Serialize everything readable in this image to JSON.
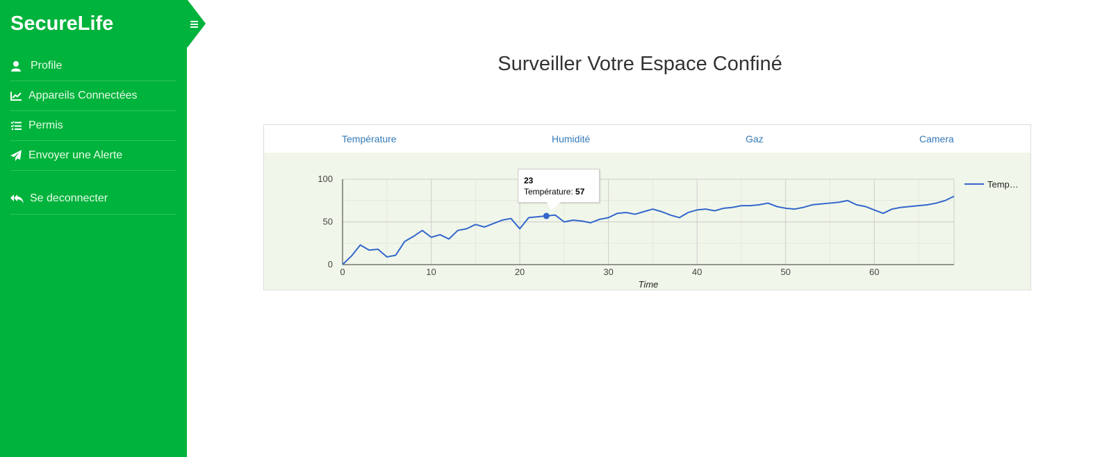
{
  "app": {
    "brand": "SecureLife"
  },
  "sidebar": {
    "items": [
      {
        "label": "Profile",
        "icon": "user-icon"
      },
      {
        "label": "Appareils Connectées",
        "icon": "chart-line-icon"
      },
      {
        "label": "Permis",
        "icon": "list-check-icon"
      },
      {
        "label": "Envoyer une Alerte",
        "icon": "paper-plane-icon"
      }
    ],
    "logout": {
      "label": "Se deconnecter",
      "icon": "reply-all-icon"
    }
  },
  "main": {
    "title": "Surveiller Votre Espace Confiné",
    "tabs": [
      "Température",
      "Humidité",
      "Gaz",
      "Camera"
    ]
  },
  "colors": {
    "sidebar": "#00b33c",
    "line": "#3366cc",
    "chart_bg": "#f0f7ea",
    "link": "#337ab7"
  },
  "chart_data": {
    "type": "line",
    "x": [
      0,
      1,
      2,
      3,
      4,
      5,
      6,
      7,
      8,
      9,
      10,
      11,
      12,
      13,
      14,
      15,
      16,
      17,
      18,
      19,
      20,
      21,
      22,
      23,
      24,
      25,
      26,
      27,
      28,
      29,
      30,
      31,
      32,
      33,
      34,
      35,
      36,
      37,
      38,
      39,
      40,
      41,
      42,
      43,
      44,
      45,
      46,
      47,
      48,
      49,
      50,
      51,
      52,
      53,
      54,
      55,
      56,
      57,
      58,
      59,
      60,
      61,
      62,
      63,
      64,
      65,
      66,
      67,
      68,
      69
    ],
    "series": [
      {
        "name": "Température",
        "values": [
          0,
          10,
          23,
          17,
          18,
          9,
          11,
          27,
          33,
          40,
          32,
          35,
          30,
          40,
          42,
          47,
          44,
          48,
          52,
          54,
          42,
          55,
          56,
          57,
          58,
          50,
          52,
          51,
          49,
          53,
          55,
          60,
          61,
          59,
          62,
          65,
          62,
          58,
          55,
          61,
          64,
          65,
          63,
          66,
          67,
          69,
          69,
          70,
          72,
          68,
          66,
          65,
          67,
          70,
          71,
          72,
          73,
          75,
          70,
          68,
          64,
          60,
          65,
          67,
          68,
          69,
          70,
          72,
          75,
          80
        ]
      }
    ],
    "legend": {
      "label": "Temp…",
      "position": "right"
    },
    "xlabel": "Time",
    "ylabel": "",
    "xlim": [
      0,
      69
    ],
    "ylim": [
      0,
      100
    ],
    "xticks": [
      0,
      10,
      20,
      30,
      40,
      50,
      60
    ],
    "yticks": [
      0,
      50,
      100
    ],
    "grid": true,
    "tooltip": {
      "x": "23",
      "label": "Température:",
      "value": "57"
    }
  }
}
